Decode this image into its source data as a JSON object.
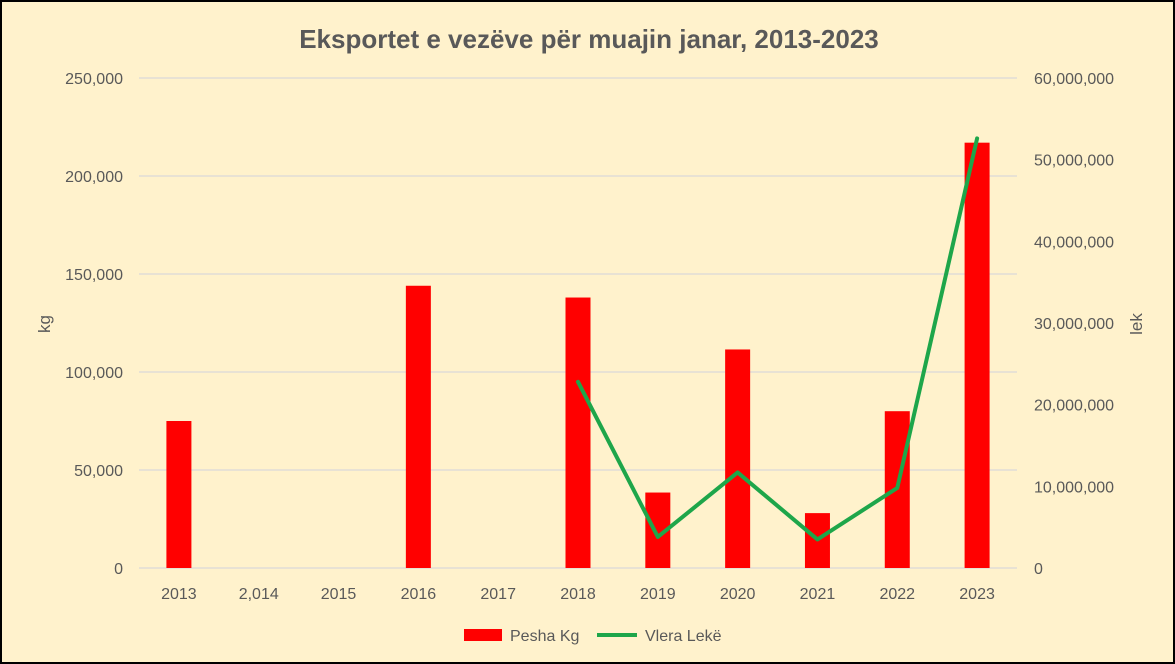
{
  "chart_data": {
    "type": "bar",
    "title": "Eksportet e vezëve për muajin janar, 2013-2023",
    "categories": [
      "2013",
      "2,014",
      "2015",
      "2016",
      "2017",
      "2018",
      "2019",
      "2020",
      "2021",
      "2022",
      "2023"
    ],
    "series": [
      {
        "name": "Pesha Kg",
        "type": "bar",
        "axis": "left",
        "color": "#ff0000",
        "values": [
          75000,
          0,
          0,
          144000,
          0,
          138000,
          38500,
          111500,
          28000,
          80000,
          217000
        ]
      },
      {
        "name": "Vlera Lekë",
        "type": "line",
        "axis": "right",
        "color": "#1ea64a",
        "values": [
          null,
          null,
          null,
          null,
          null,
          22800000,
          3800000,
          11700000,
          3500000,
          9800000,
          52600000
        ]
      }
    ],
    "ylabel": "kg",
    "ylabel_right": "lek",
    "ylim": [
      0,
      250000
    ],
    "ylim_right": [
      0,
      60000000
    ],
    "yticks": [
      "0",
      "50,000",
      "100,000",
      "150,000",
      "200,000",
      "250,000"
    ],
    "yticks_right": [
      "0",
      "10,000,000",
      "20,000,000",
      "30,000,000",
      "40,000,000",
      "50,000,000",
      "60,000,000"
    ],
    "grid": true,
    "legend": "bottom"
  }
}
